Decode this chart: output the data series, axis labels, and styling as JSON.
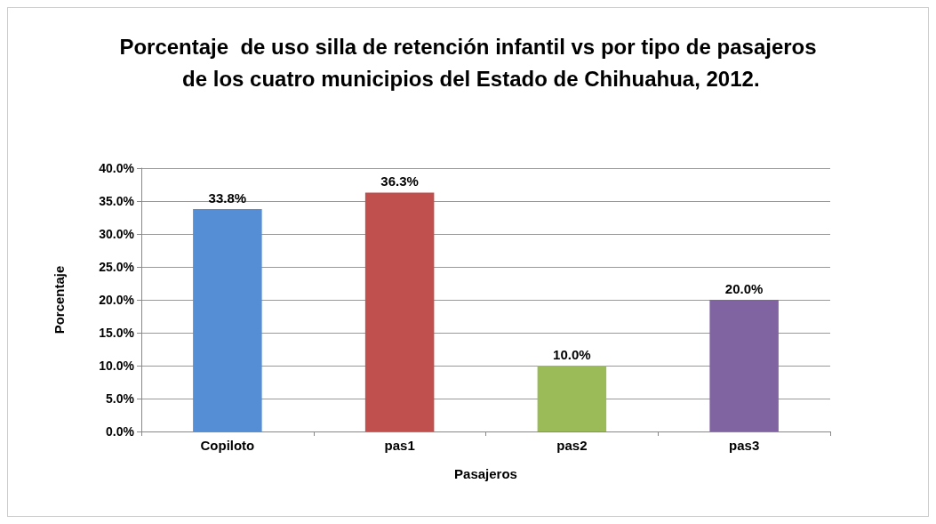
{
  "chart_data": {
    "type": "bar",
    "title": "Porcentaje  de uso silla de retención infantil vs por tipo de pasajeros de los cuatro municipios del Estado de Chihuahua, 2012.",
    "xlabel": "Pasajeros",
    "ylabel": "Porcentaje",
    "categories": [
      "Copiloto",
      "pas1",
      "pas2",
      "pas3"
    ],
    "values": [
      33.8,
      36.3,
      10.0,
      20.0
    ],
    "colors": [
      "#558ed5",
      "#c0504d",
      "#9bbb59",
      "#8064a2"
    ],
    "value_labels": [
      "33.8%",
      "36.3%",
      "10.0%",
      "20.0%"
    ],
    "ylim": [
      0,
      40
    ],
    "yticks": [
      {
        "value": 0,
        "label": "0.0%"
      },
      {
        "value": 5,
        "label": "5.0%"
      },
      {
        "value": 10,
        "label": "10.0%"
      },
      {
        "value": 15,
        "label": "15.0%"
      },
      {
        "value": 20,
        "label": "20.0%"
      },
      {
        "value": 25,
        "label": "25.0%"
      },
      {
        "value": 30,
        "label": "30.0%"
      },
      {
        "value": 35,
        "label": "35.0%"
      },
      {
        "value": 40,
        "label": "40.0%"
      }
    ],
    "grid": "y"
  }
}
